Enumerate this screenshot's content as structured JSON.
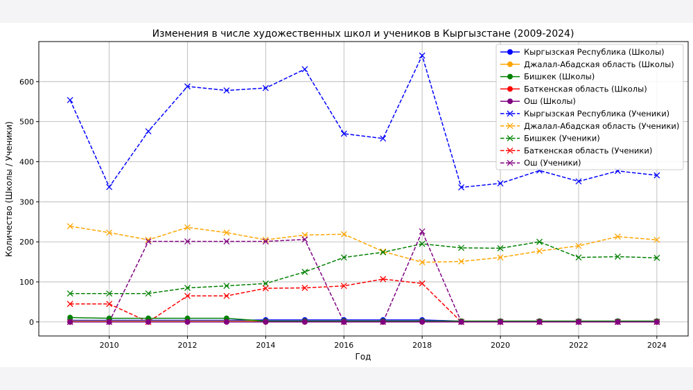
{
  "chart_data": {
    "type": "line",
    "title": "Изменения в числе художественных школ и учеников в Кыргызстане (2009-2024)",
    "xlabel": "Год",
    "ylabel": "Количество (Школы / Ученики)",
    "xlim": [
      2008.2,
      2024.8
    ],
    "ylim": [
      -35,
      700
    ],
    "xticks": [
      2010,
      2012,
      2014,
      2016,
      2018,
      2020,
      2022,
      2024
    ],
    "yticks": [
      0,
      100,
      200,
      300,
      400,
      500,
      600
    ],
    "grid": true,
    "legend_position": "top-right",
    "x": [
      2009,
      2010,
      2011,
      2012,
      2013,
      2014,
      2015,
      2016,
      2017,
      2018,
      2019,
      2020,
      2021,
      2022,
      2023,
      2024
    ],
    "series": [
      {
        "name": "Кыргызская Республика (Школы)",
        "color": "#0000ff",
        "style": "solid",
        "marker": "o",
        "values": [
          4,
          4,
          4,
          4,
          4,
          5,
          5,
          5,
          5,
          5,
          2,
          2,
          2,
          2,
          2,
          2
        ]
      },
      {
        "name": "Джалал-Абадская область (Школы)",
        "color": "#ffa500",
        "style": "solid",
        "marker": "o",
        "values": [
          2,
          2,
          2,
          2,
          2,
          2,
          2,
          2,
          2,
          2,
          2,
          2,
          2,
          2,
          2,
          2
        ]
      },
      {
        "name": "Бишкек (Школы)",
        "color": "#008000",
        "style": "solid",
        "marker": "o",
        "values": [
          11,
          9,
          9,
          9,
          9,
          2,
          2,
          2,
          2,
          2,
          2,
          2,
          2,
          2,
          2,
          2
        ]
      },
      {
        "name": "Баткенская область (Школы)",
        "color": "#ff0000",
        "style": "solid",
        "marker": "o",
        "values": [
          0,
          0,
          0,
          0,
          0,
          0,
          0,
          0,
          0,
          0,
          0,
          0,
          0,
          0,
          0,
          0
        ]
      },
      {
        "name": "Ош (Школы)",
        "color": "#800080",
        "style": "solid",
        "marker": "o",
        "values": [
          0,
          0,
          0,
          0,
          0,
          0,
          0,
          0,
          0,
          0,
          0,
          0,
          0,
          0,
          0,
          0
        ]
      },
      {
        "name": "Кыргызская Республика (Ученики)",
        "color": "#0000ff",
        "style": "dashed",
        "marker": "x",
        "values": [
          554,
          337,
          476,
          588,
          578,
          584,
          631,
          470,
          458,
          665,
          336,
          346,
          378,
          351,
          377,
          366
        ]
      },
      {
        "name": "Джалал-Абадская область (Ученики)",
        "color": "#ffa500",
        "style": "dashed",
        "marker": "x",
        "values": [
          239,
          223,
          205,
          236,
          223,
          205,
          217,
          219,
          176,
          149,
          151,
          161,
          177,
          190,
          213,
          205
        ]
      },
      {
        "name": "Бишкек (Ученики)",
        "color": "#008000",
        "style": "dashed",
        "marker": "x",
        "values": [
          71,
          71,
          71,
          85,
          90,
          96,
          125,
          161,
          174,
          195,
          185,
          184,
          200,
          161,
          163,
          160
        ]
      },
      {
        "name": "Баткенская область (Ученики)",
        "color": "#ff0000",
        "style": "dashed",
        "marker": "x",
        "values": [
          45,
          45,
          0,
          65,
          65,
          84,
          85,
          90,
          107,
          96,
          0,
          0,
          0,
          0,
          0,
          0
        ]
      },
      {
        "name": "Ош (Ученики)",
        "color": "#800080",
        "style": "dashed",
        "marker": "x",
        "values": [
          0,
          0,
          201,
          201,
          201,
          201,
          206,
          0,
          0,
          226,
          0,
          0,
          0,
          0,
          0,
          0
        ]
      }
    ]
  }
}
